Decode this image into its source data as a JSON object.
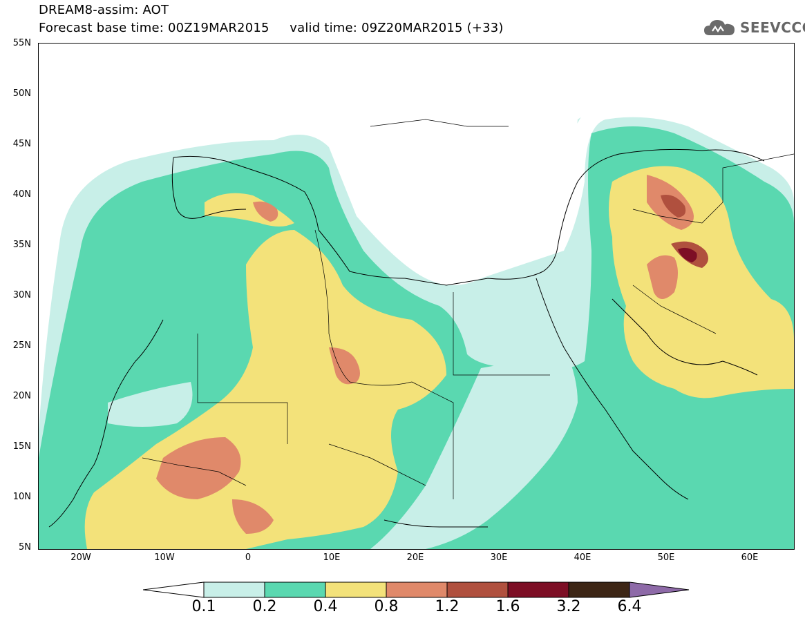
{
  "header": {
    "title_line1": "DREAM8-assim: AOT",
    "title_line2": "Forecast base time: 00Z19MAR2015     valid time: 09Z20MAR2015 (+33)"
  },
  "logo": {
    "icon": "cloud-icon",
    "text": "SEEVCCC"
  },
  "map": {
    "lat_labels": [
      "55N",
      "50N",
      "45N",
      "40N",
      "35N",
      "30N",
      "25N",
      "20N",
      "15N",
      "10N",
      "5N"
    ],
    "lon_labels": [
      "20W",
      "10W",
      "0",
      "10E",
      "20E",
      "30E",
      "40E",
      "50E",
      "60E"
    ]
  },
  "colorbar": {
    "labels": [
      "0.1",
      "0.2",
      "0.4",
      "0.8",
      "1.2",
      "1.6",
      "3.2",
      "6.4"
    ],
    "colors": [
      "#c8efe8",
      "#5ad8b0",
      "#f3e27a",
      "#e0896a",
      "#b0503e",
      "#7d0e25",
      "#3d2616",
      "#8e6aa8"
    ]
  }
}
